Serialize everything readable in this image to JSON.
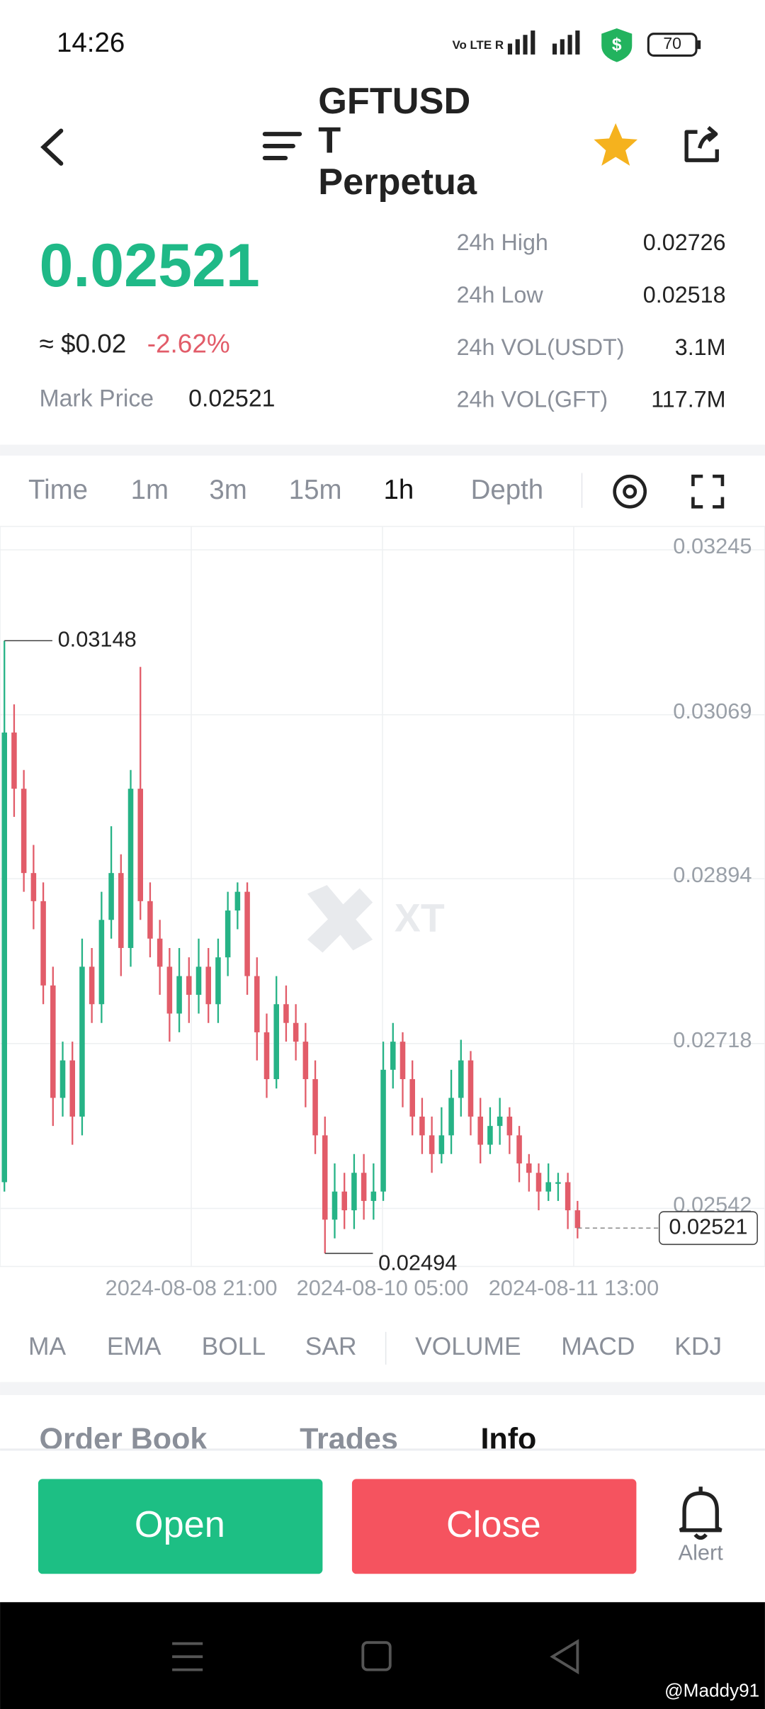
{
  "status": {
    "time": "14:26",
    "battery": "70"
  },
  "header": {
    "title_lines": [
      "GFTUSD",
      "T",
      "Perpetua"
    ]
  },
  "ticker": {
    "price": "0.02521",
    "usd": "≈ $0.02",
    "change": "-2.62%",
    "mark_label": "Mark Price",
    "mark_value": "0.02521",
    "stats": [
      {
        "label": "24h High",
        "value": "0.02726"
      },
      {
        "label": "24h Low",
        "value": "0.02518"
      },
      {
        "label": "24h VOL(USDT)",
        "value": "3.1M"
      },
      {
        "label": "24h VOL(GFT)",
        "value": "117.7M"
      }
    ]
  },
  "intervals": [
    "Time",
    "1m",
    "3m",
    "15m",
    "1h",
    "Depth"
  ],
  "chart_data": {
    "type": "candlestick",
    "watermark": "XT",
    "open": [
      0.0257,
      0.0305,
      0.0299,
      0.029,
      0.0287,
      0.0278,
      0.0266,
      0.027,
      0.0264,
      0.028,
      0.0276,
      0.0285,
      0.029,
      0.0282,
      0.0299,
      0.0287,
      0.0283,
      0.028,
      0.0275,
      0.0279,
      0.0277,
      0.028,
      0.0276,
      0.0281,
      0.0286,
      0.0288,
      0.0279,
      0.0273,
      0.0268,
      0.0276,
      0.0274,
      0.0272,
      0.0268,
      0.0262,
      0.0253,
      0.0256,
      0.0254,
      0.0258,
      0.0255,
      0.0256,
      0.0269,
      0.0272,
      0.0268,
      0.0264,
      0.0262,
      0.026,
      0.0262,
      0.0266,
      0.027,
      0.0264,
      0.0261,
      0.0263,
      0.0264,
      0.0262,
      0.0259,
      0.0258,
      0.0256,
      0.0257,
      0.0257,
      0.0254
    ],
    "high": [
      0.03148,
      0.0308,
      0.0301,
      0.0293,
      0.0289,
      0.028,
      0.0272,
      0.0272,
      0.0283,
      0.0282,
      0.0288,
      0.0295,
      0.0292,
      0.0301,
      0.0312,
      0.0289,
      0.0285,
      0.0282,
      0.0282,
      0.0281,
      0.0283,
      0.0282,
      0.0283,
      0.0288,
      0.0289,
      0.0289,
      0.0281,
      0.0275,
      0.0279,
      0.0278,
      0.0276,
      0.0274,
      0.027,
      0.0264,
      0.0259,
      0.0258,
      0.026,
      0.026,
      0.0259,
      0.0272,
      0.0274,
      0.0273,
      0.027,
      0.0266,
      0.0264,
      0.0265,
      0.0269,
      0.02722,
      0.0271,
      0.0266,
      0.0265,
      0.0266,
      0.0265,
      0.0263,
      0.026,
      0.0259,
      0.0259,
      0.0258,
      0.0258,
      0.0255
    ],
    "low": [
      0.0256,
      0.0296,
      0.0288,
      0.0284,
      0.0276,
      0.0263,
      0.0264,
      0.0261,
      0.0262,
      0.0274,
      0.0274,
      0.0283,
      0.0279,
      0.028,
      0.0285,
      0.0281,
      0.0277,
      0.0272,
      0.0273,
      0.0274,
      0.0275,
      0.0274,
      0.0274,
      0.0279,
      0.0284,
      0.0277,
      0.027,
      0.0266,
      0.0267,
      0.0272,
      0.027,
      0.0265,
      0.026,
      0.02494,
      0.0251,
      0.0252,
      0.0252,
      0.0253,
      0.0253,
      0.0255,
      0.0267,
      0.0265,
      0.0262,
      0.026,
      0.0258,
      0.0259,
      0.026,
      0.0264,
      0.0262,
      0.0259,
      0.026,
      0.0261,
      0.026,
      0.0257,
      0.0256,
      0.0254,
      0.0255,
      0.0255,
      0.0252,
      0.0251
    ],
    "close": [
      0.0305,
      0.0299,
      0.029,
      0.0287,
      0.0278,
      0.0266,
      0.027,
      0.0264,
      0.028,
      0.0276,
      0.0285,
      0.029,
      0.0282,
      0.0299,
      0.0287,
      0.0283,
      0.028,
      0.0275,
      0.0279,
      0.0277,
      0.028,
      0.0276,
      0.0281,
      0.0286,
      0.0288,
      0.0279,
      0.0273,
      0.0268,
      0.0276,
      0.0274,
      0.0272,
      0.0268,
      0.0262,
      0.0253,
      0.0256,
      0.0254,
      0.0258,
      0.0255,
      0.0256,
      0.0269,
      0.0272,
      0.0268,
      0.0264,
      0.0262,
      0.026,
      0.0262,
      0.0266,
      0.027,
      0.0264,
      0.0261,
      0.0263,
      0.0264,
      0.0262,
      0.0259,
      0.0258,
      0.0256,
      0.0257,
      0.0257,
      0.0254,
      0.02521
    ],
    "up_color": "#26b386",
    "down_color": "#e25c69",
    "ylim": [
      0.0248,
      0.0327
    ],
    "yticks": [
      0.03245,
      0.03069,
      0.02894,
      0.02718,
      0.02542
    ],
    "xtick_labels": [
      "2024-08-08 21:00",
      "2024-08-10 05:00",
      "2024-08-11 13:00"
    ],
    "high_label": "0.03148",
    "low_label": "0.02494",
    "last_label": "0.02521"
  },
  "indicators": [
    "MA",
    "EMA",
    "BOLL",
    "SAR",
    "VOLUME",
    "MACD",
    "KDJ"
  ],
  "tabs": [
    "Order Book",
    "Trades",
    "Info"
  ],
  "actions": {
    "open": "Open",
    "close": "Close",
    "alert": "Alert"
  },
  "footer": {
    "credit": "@Maddy91"
  }
}
